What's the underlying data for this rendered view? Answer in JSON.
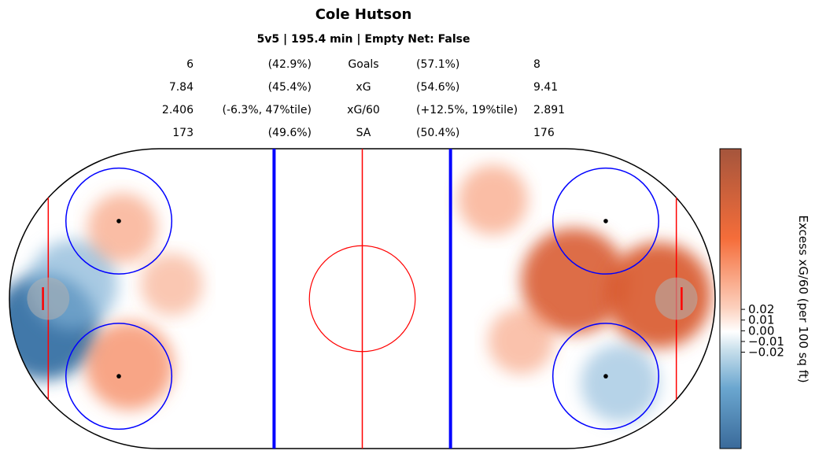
{
  "chart_data": {
    "type": "heatmap",
    "title": "Cole Hutson",
    "subtitle": "5v5 | 195.4 min | Empty Net: False",
    "colorbar_label": "Excess xG/60 (per 100 sq ft)",
    "colorbar_ticks": [
      "0.02",
      "0.01",
      "0.00",
      "−0.01",
      "−0.02"
    ],
    "colorbar_tick_values": [
      0.02,
      0.01,
      0.0,
      -0.01,
      -0.02
    ],
    "colorbar_range": [
      -0.11,
      0.17
    ],
    "colors": {
      "positive": "#c05a30",
      "negative": "#2f6aa0",
      "neutral": "#ffffff",
      "blue_line": "#0000ff",
      "red_line": "#ff0000"
    },
    "stats": [
      {
        "left": "6",
        "left_pct": "(42.9%)",
        "label": "Goals",
        "right_pct": "(57.1%)",
        "right": "8"
      },
      {
        "left": "7.84",
        "left_pct": "(45.4%)",
        "label": "xG",
        "right_pct": "(54.6%)",
        "right": "9.41"
      },
      {
        "left": "2.406",
        "left_pct": "(-6.3%, 47%tile)",
        "label": "xG/60",
        "right_pct": "(+12.5%, 19%tile)",
        "right": "2.891"
      },
      {
        "left": "173",
        "left_pct": "(49.6%)",
        "label": "SA",
        "right_pct": "(50.4%)",
        "right": "176"
      }
    ],
    "hotspots": [
      {
        "zone": "left",
        "x": -90,
        "y": -8,
        "value": -0.1
      },
      {
        "zone": "left",
        "x": -82,
        "y": 4,
        "value": -0.06
      },
      {
        "zone": "left",
        "x": -68,
        "y": 20,
        "value": 0.04
      },
      {
        "zone": "left",
        "x": -66,
        "y": -19,
        "value": 0.09
      },
      {
        "zone": "left",
        "x": -54,
        "y": 4,
        "value": 0.02
      },
      {
        "zone": "right",
        "x": 60,
        "y": 5,
        "value": 0.15
      },
      {
        "zone": "right",
        "x": 84,
        "y": 1,
        "value": 0.16
      },
      {
        "zone": "right",
        "x": 37,
        "y": 28,
        "value": 0.04
      },
      {
        "zone": "right",
        "x": 73,
        "y": -24,
        "value": -0.04
      },
      {
        "zone": "right",
        "x": 45,
        "y": -12,
        "value": 0.03
      }
    ]
  }
}
